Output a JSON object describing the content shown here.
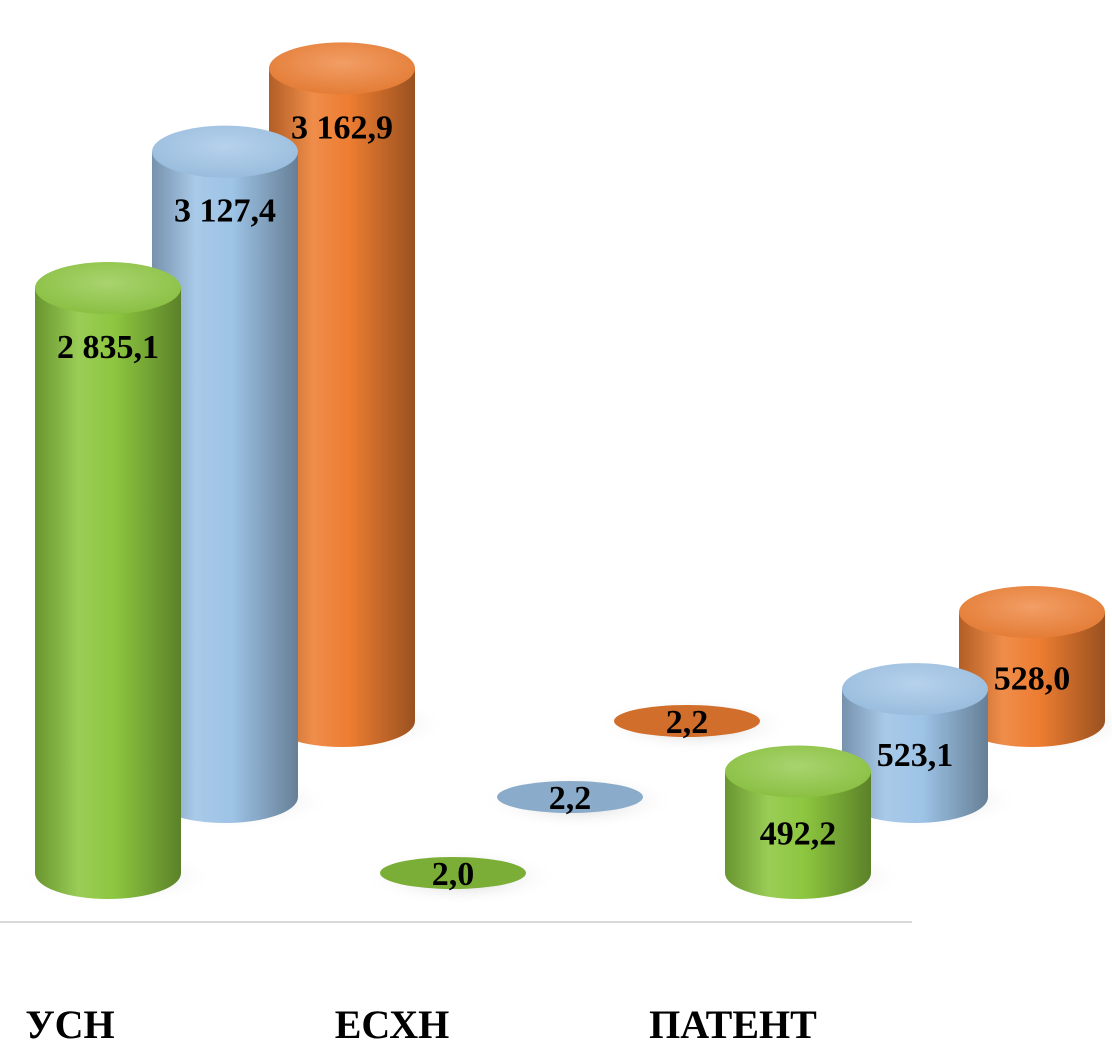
{
  "chart_data": {
    "type": "bar",
    "style": "3d-cylinder",
    "title": "",
    "xlabel": "",
    "ylabel": "",
    "categories": [
      "УСН",
      "ЕСХН",
      "ПАТЕНТ"
    ],
    "series": [
      {
        "color": "#8cc63f",
        "values": [
          2835.1,
          2.0,
          492.2
        ],
        "labels": [
          "2 835,1",
          "2,0",
          "492,2"
        ]
      },
      {
        "color": "#9dc3e6",
        "values": [
          3127.4,
          2.2,
          523.1
        ],
        "labels": [
          "3 127,4",
          "2,2",
          "523,1"
        ]
      },
      {
        "color": "#ed7d31",
        "values": [
          3162.9,
          2.2,
          528.0
        ],
        "labels": [
          "3 162,9",
          "2,2",
          "528,0"
        ]
      }
    ],
    "legend": "none",
    "grid": false
  }
}
